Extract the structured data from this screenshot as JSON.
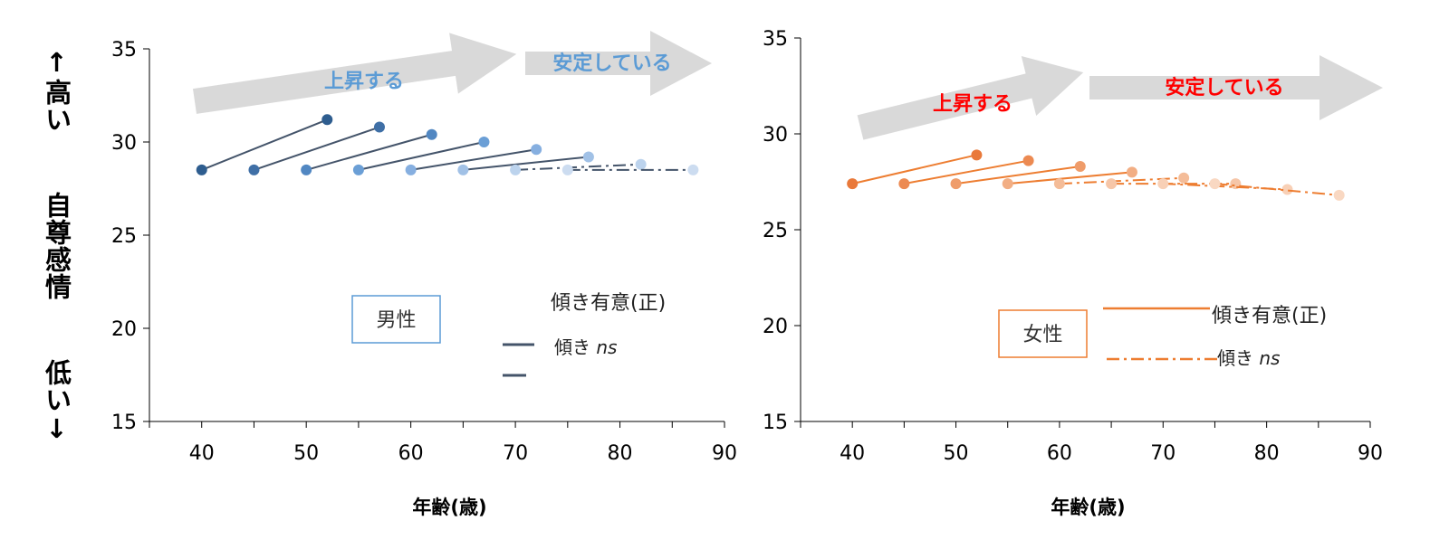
{
  "y_axis_label": {
    "top": "↑高い",
    "middle": "自尊感情",
    "bottom": "低い↓"
  },
  "colors": {
    "male_line": "#44546a",
    "female_line": "#ed7d31",
    "male_box_border": "#5b9bd5",
    "female_box_border": "#ed7d31",
    "male_arrow_text": "#5b9bd5",
    "female_arrow_text": "#ff0000",
    "arrow_fill": "#d9d9d9",
    "male_markers": [
      "#2e5d8f",
      "#3f6fa6",
      "#5187c2",
      "#6b9fd6",
      "#86afe0",
      "#a1c1e6",
      "#bcd3ed",
      "#ccdcf0"
    ],
    "female_markers": [
      "#e9793a",
      "#ec8a52",
      "#ef9c6a",
      "#f2ae84",
      "#f4bc98",
      "#f6c6a8",
      "#f8d0b6",
      "#f9d8c2"
    ]
  },
  "chart_data": [
    {
      "type": "line",
      "panel": "male",
      "xlabel": "年齢(歳)",
      "ylabel": "",
      "xlim": [
        35,
        90
      ],
      "ylim": [
        15,
        35
      ],
      "xticks": [
        40,
        50,
        60,
        70,
        80,
        90
      ],
      "yticks": [
        15,
        20,
        25,
        30,
        35
      ],
      "box_label": "男性",
      "legend": {
        "significant": "傾き有意(正)",
        "ns_prefix": "傾き",
        "ns_italic": "ns"
      },
      "arrows": [
        {
          "label": "上昇する"
        },
        {
          "label": "安定している"
        }
      ],
      "series": [
        {
          "x": [
            40,
            52
          ],
          "y": [
            28.5,
            31.2
          ],
          "style": "solid"
        },
        {
          "x": [
            45,
            57
          ],
          "y": [
            28.5,
            30.8
          ],
          "style": "solid"
        },
        {
          "x": [
            50,
            62
          ],
          "y": [
            28.5,
            30.4
          ],
          "style": "solid"
        },
        {
          "x": [
            55,
            67
          ],
          "y": [
            28.5,
            30.0
          ],
          "style": "solid"
        },
        {
          "x": [
            60,
            72
          ],
          "y": [
            28.5,
            29.6
          ],
          "style": "solid"
        },
        {
          "x": [
            65,
            77
          ],
          "y": [
            28.5,
            29.2
          ],
          "style": "solid"
        },
        {
          "x": [
            70,
            82
          ],
          "y": [
            28.5,
            28.8
          ],
          "style": "dashdot"
        },
        {
          "x": [
            75,
            87
          ],
          "y": [
            28.5,
            28.5
          ],
          "style": "dashdot"
        }
      ]
    },
    {
      "type": "line",
      "panel": "female",
      "xlabel": "年齢(歳)",
      "ylabel": "",
      "xlim": [
        35,
        90
      ],
      "ylim": [
        15,
        35
      ],
      "xticks": [
        40,
        50,
        60,
        70,
        80,
        90
      ],
      "yticks": [
        15,
        20,
        25,
        30,
        35
      ],
      "box_label": "女性",
      "legend": {
        "significant": "傾き有意(正)",
        "ns_prefix": "傾き",
        "ns_italic": "ns"
      },
      "arrows": [
        {
          "label": "上昇する"
        },
        {
          "label": "安定している"
        }
      ],
      "series": [
        {
          "x": [
            40,
            52
          ],
          "y": [
            27.4,
            28.9
          ],
          "style": "solid"
        },
        {
          "x": [
            45,
            57
          ],
          "y": [
            27.4,
            28.6
          ],
          "style": "solid"
        },
        {
          "x": [
            50,
            62
          ],
          "y": [
            27.4,
            28.3
          ],
          "style": "solid"
        },
        {
          "x": [
            55,
            67
          ],
          "y": [
            27.4,
            28.0
          ],
          "style": "solid"
        },
        {
          "x": [
            60,
            72
          ],
          "y": [
            27.4,
            27.7
          ],
          "style": "dashdot"
        },
        {
          "x": [
            65,
            77
          ],
          "y": [
            27.4,
            27.4
          ],
          "style": "dashdot"
        },
        {
          "x": [
            70,
            82
          ],
          "y": [
            27.4,
            27.1
          ],
          "style": "dashdot"
        },
        {
          "x": [
            75,
            87
          ],
          "y": [
            27.4,
            26.8
          ],
          "style": "dashdot"
        }
      ]
    }
  ]
}
